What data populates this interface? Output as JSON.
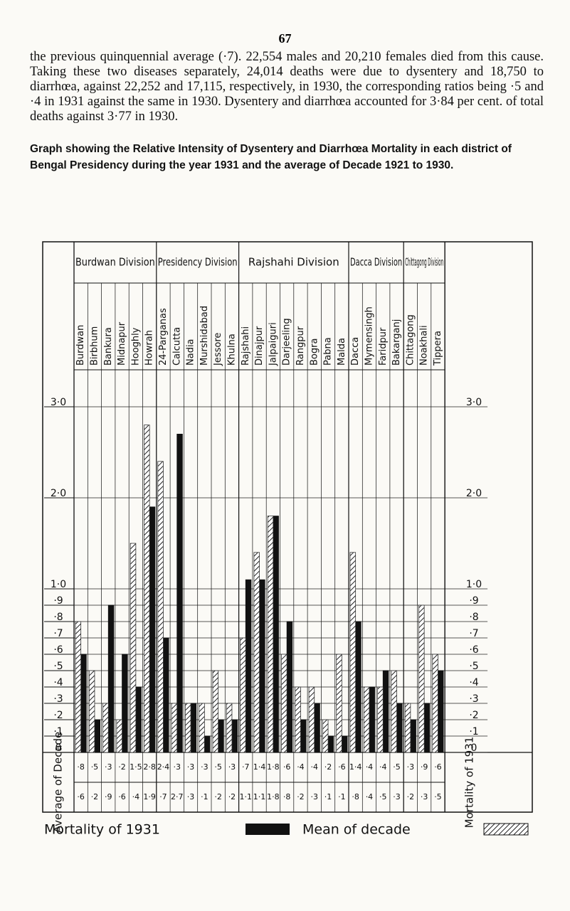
{
  "page_number": "67",
  "paragraph": "the previous quinquennial average (·7). 22,554 males and 20,210 females died from this cause. Taking these two diseases separately, 24,014 deaths were due to dysentery and 18,750 to diarrhœa, against 22,252 and 17,115, respectively, in 1930, the corresponding ratios being ·5 and ·4 in 1931 against the same in 1930. Dysentery and diarrhœa accounted for 3·84 per cent. of total deaths against 3·77 in 1930.",
  "chart_data": {
    "type": "bar",
    "title": "Graph showing the Relative Intensity of Dysentery and Diarrhœa Mortality in each district of Bengal Presidency during the year 1931 and the average of Decade 1921 to 1930.",
    "groups": [
      {
        "label": "Burdwan Division",
        "categories": [
          "Burdwan",
          "Birbhum",
          "Bankura",
          "Midnapur",
          "Hooghly",
          "Howrah"
        ]
      },
      {
        "label": "Presidency Division",
        "categories": [
          "24-Parganas",
          "Calcutta",
          "Nadia",
          "Murshidabad",
          "Jessore",
          "Khulna"
        ]
      },
      {
        "label": "Rajshahi Division",
        "categories": [
          "Rajshahi",
          "Dinajpur",
          "Jalpaiguri",
          "Darjeeling",
          "Rangpur",
          "Bogra",
          "Pabna",
          "Malda"
        ]
      },
      {
        "label": "Dacca Division",
        "categories": [
          "Dacca",
          "Mymensingh",
          "Faridpur",
          "Bakarganj"
        ]
      },
      {
        "label": "Chittagong Division",
        "categories": [
          "Chittagong",
          "Noakhali",
          "Tippera"
        ]
      }
    ],
    "decade_row_label": "Average of Decade",
    "series": [
      {
        "name": "Mortality of 1931",
        "color": "#111111",
        "values": [
          0.6,
          0.2,
          0.9,
          0.6,
          0.4,
          1.9,
          0.7,
          2.7,
          0.3,
          0.1,
          0.2,
          0.2,
          1.1,
          1.1,
          1.8,
          0.8,
          0.2,
          0.3,
          0.1,
          0.1,
          0.8,
          0.4,
          0.5,
          0.3,
          0.2,
          0.3,
          0.5
        ],
        "value_labels": [
          "·6",
          "·2",
          "·9",
          "·6",
          "·4",
          "1·9",
          "·7",
          "2·7",
          "·3",
          "·1",
          "·2",
          "·2",
          "1·1",
          "1·1",
          "1·8",
          "·8",
          "·2",
          "·3",
          "·1",
          "·1",
          "·8",
          "·4",
          "·5",
          "·3",
          "·2",
          "·3",
          "·5"
        ]
      },
      {
        "name": "Mean of decade",
        "color": "#333333",
        "hatched": true,
        "values": [
          0.8,
          0.5,
          0.3,
          0.2,
          1.5,
          2.8,
          2.4,
          0.3,
          0.3,
          0.3,
          0.5,
          0.3,
          0.7,
          1.4,
          1.8,
          0.6,
          0.4,
          0.4,
          0.2,
          0.6,
          1.4,
          0.4,
          0.4,
          0.5,
          0.3,
          0.9,
          0.6
        ],
        "value_labels": [
          "·8",
          "·5",
          "·3",
          "·2",
          "1·5",
          "2·8",
          "2·4",
          "·3",
          "·3",
          "·3",
          "·5",
          "·3",
          "·7",
          "1·4",
          "1·8",
          "·6",
          "·4",
          "·4",
          "·2",
          "·6",
          "1·4",
          "·4",
          "·4",
          "·5",
          "·3",
          "·9",
          "·6"
        ]
      }
    ],
    "ylim": [
      0,
      3
    ],
    "yticks": [
      0,
      {
        "value": 0.1,
        "label": "·1"
      },
      {
        "value": 0.2,
        "label": "·2"
      },
      {
        "value": 0.3,
        "label": "·3"
      },
      {
        "value": 0.4,
        "label": "·4"
      },
      {
        "value": 0.5,
        "label": "·5"
      },
      {
        "value": 0.6,
        "label": "·6"
      },
      {
        "value": 0.7,
        "label": "·7"
      },
      {
        "value": 0.8,
        "label": "·8"
      },
      {
        "value": 0.9,
        "label": "·9"
      },
      {
        "value": 1,
        "label": "1·0"
      },
      {
        "value": 2,
        "label": "2·0"
      },
      {
        "value": 3,
        "label": "3·0"
      }
    ],
    "grid": true
  }
}
